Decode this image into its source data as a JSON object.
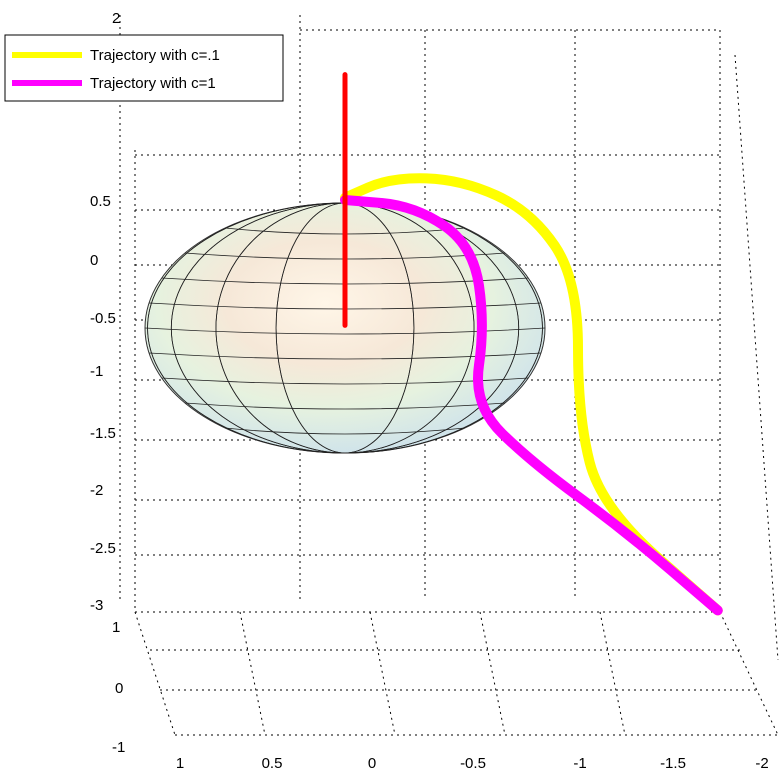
{
  "chart_data": {
    "type": "line",
    "title": "",
    "view": "3d",
    "grid": true,
    "legend_position": "top-left",
    "axes": {
      "z_ticks": [
        "2",
        "0.5",
        "0",
        "-0.5",
        "-1",
        "-1.5",
        "-2",
        "-2.5",
        "-3"
      ],
      "y_ticks": [
        "1",
        "0",
        "-1"
      ],
      "x_ticks": [
        "1",
        "0.5",
        "0",
        "-0.5",
        "-1",
        "-1.5",
        "-2"
      ]
    },
    "surface": {
      "shape": "ellipsoid",
      "color": "pastel-gradient"
    },
    "series": [
      {
        "name": "Trajectory with c=.1",
        "color": "#ffff00",
        "note_values": "path traced in projected plot space",
        "points": [
          [
            0,
            0.52
          ],
          [
            0.2,
            0.7
          ],
          [
            0.5,
            0.68
          ],
          [
            0.8,
            0.4
          ],
          [
            1.0,
            -0.2
          ],
          [
            1.0,
            -1.4
          ],
          [
            1.1,
            -2.2
          ],
          [
            1.6,
            -3.1
          ]
        ]
      },
      {
        "name": "Trajectory with c=1",
        "color": "#ff00ff",
        "points": [
          [
            0,
            0.5
          ],
          [
            0.3,
            0.45
          ],
          [
            0.55,
            0.1
          ],
          [
            0.6,
            -0.6
          ],
          [
            0.55,
            -1.3
          ],
          [
            0.8,
            -1.8
          ],
          [
            1.2,
            -2.4
          ],
          [
            1.6,
            -3.1
          ]
        ]
      },
      {
        "name": "",
        "color": "#ff0000",
        "points": [
          [
            0,
            1.6
          ],
          [
            0,
            -0.6
          ]
        ]
      }
    ]
  }
}
